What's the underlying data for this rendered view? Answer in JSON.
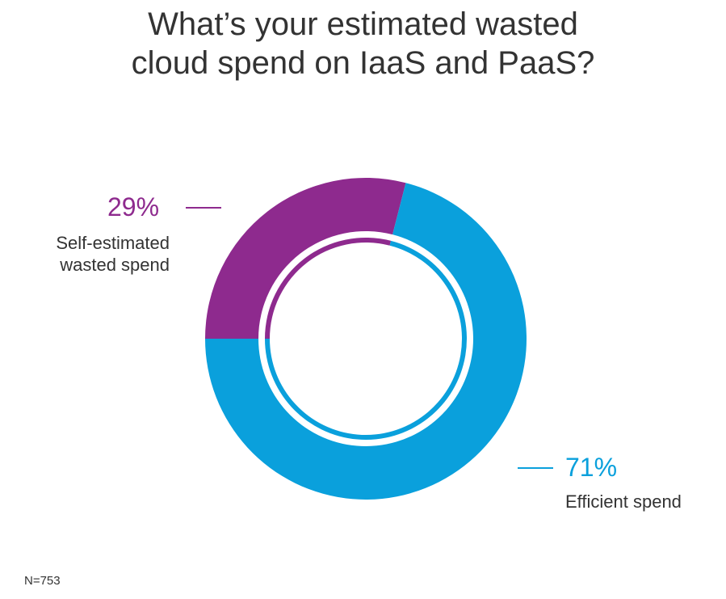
{
  "title_lines": [
    "What’s your estimated wasted",
    "cloud spend on IaaS and PaaS?"
  ],
  "footnote": "N=753",
  "chart_data": {
    "type": "pie",
    "title": "What’s your estimated wasted cloud spend on IaaS and PaaS?",
    "style": "donut",
    "slices": [
      {
        "label": "Self-estimated wasted spend",
        "label_lines": [
          "Self-estimated",
          "wasted spend"
        ],
        "value": 29,
        "display": "29%",
        "color": "#8e2a8e"
      },
      {
        "label": "Efficient spend",
        "label_lines": [
          "Efficient spend"
        ],
        "value": 71,
        "display": "71%",
        "color": "#0aa0dc"
      }
    ],
    "legend": "none"
  }
}
